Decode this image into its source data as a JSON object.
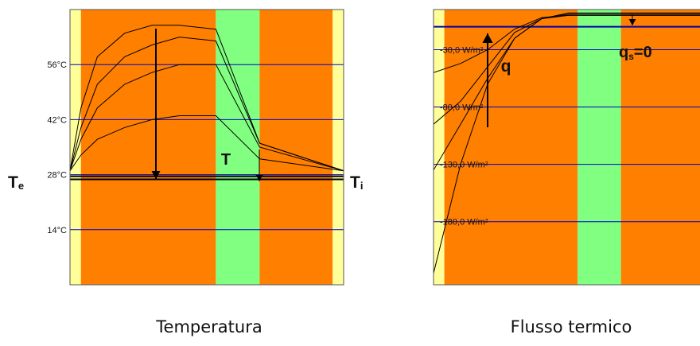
{
  "chart_data": [
    {
      "type": "line",
      "title": "",
      "caption": "Temperatura",
      "xlabel": "",
      "ylabel": "",
      "ylim": [
        0,
        70
      ],
      "y_ticks": [
        {
          "value": 56,
          "label": "56°C"
        },
        {
          "value": 42,
          "label": "42°C"
        },
        {
          "value": 28,
          "label": "28°C"
        },
        {
          "value": 14,
          "label": "14°C"
        }
      ],
      "grid": true,
      "layers": [
        {
          "name": "",
          "color": "#ffff99",
          "from": 0.0,
          "to": 0.04
        },
        {
          "name": "",
          "color": "#ff7f00",
          "from": 0.04,
          "to": 0.533
        },
        {
          "name": "",
          "color": "#80ff80",
          "from": 0.533,
          "to": 0.693
        },
        {
          "name": "",
          "color": "#ff7f00",
          "from": 0.693,
          "to": 0.96
        },
        {
          "name": "",
          "color": "#ffff99",
          "from": 0.96,
          "to": 1.0
        }
      ],
      "x": [
        0,
        0.04,
        0.1,
        0.2,
        0.3,
        0.4,
        0.533,
        0.693,
        1.0
      ],
      "series": [
        {
          "name": "",
          "values": [
            29,
            45,
            58,
            64,
            66,
            66,
            65,
            36,
            29
          ]
        },
        {
          "name": "",
          "values": [
            29,
            40,
            51,
            58,
            61,
            63,
            62,
            36,
            29
          ]
        },
        {
          "name": "",
          "values": [
            29,
            37,
            45,
            51,
            54,
            56,
            56,
            35,
            29
          ]
        },
        {
          "name": "",
          "values": [
            29,
            33,
            37,
            40,
            42,
            43,
            43,
            32,
            29
          ]
        }
      ],
      "reference_lines": [
        {
          "value": 27.6
        },
        {
          "value": 26.8
        }
      ],
      "annotations": [
        "T",
        "Te",
        "Ti"
      ]
    },
    {
      "type": "line",
      "title": "",
      "caption": "Flusso termico",
      "xlabel": "",
      "ylabel": "",
      "ylim": [
        -235,
        5
      ],
      "y_ticks": [
        {
          "value": -30,
          "label": "-30,0 W/m²"
        },
        {
          "value": -80,
          "label": "-80,0 W/m²"
        },
        {
          "value": -130,
          "label": "-130,0 W/m²"
        },
        {
          "value": -180,
          "label": "-180,0 W/m²"
        }
      ],
      "grid": true,
      "layers": [
        {
          "name": "",
          "color": "#ffff99",
          "from": 0.0,
          "to": 0.04
        },
        {
          "name": "",
          "color": "#ff7f00",
          "from": 0.04,
          "to": 0.533
        },
        {
          "name": "",
          "color": "#80ff80",
          "from": 0.533,
          "to": 0.693
        },
        {
          "name": "",
          "color": "#ff7f00",
          "from": 0.693,
          "to": 1.0
        }
      ],
      "x": [
        0,
        0.1,
        0.2,
        0.3,
        0.4,
        0.5,
        0.533,
        0.693,
        1.0
      ],
      "series": [
        {
          "name": "",
          "values": [
            -225,
            -130,
            -60,
            -20,
            -3,
            2,
            2,
            2,
            2
          ]
        },
        {
          "name": "",
          "values": [
            -135,
            -95,
            -55,
            -20,
            -3,
            1,
            1,
            1,
            1
          ]
        },
        {
          "name": "",
          "values": [
            -95,
            -75,
            -45,
            -15,
            -3,
            0,
            0,
            0,
            0
          ]
        },
        {
          "name": "",
          "values": [
            -50,
            -42,
            -30,
            -12,
            -2,
            0,
            0,
            0,
            0
          ]
        }
      ],
      "reference_lines": [
        {
          "value": -10
        }
      ],
      "annotations": [
        "q",
        "qs=0"
      ]
    }
  ]
}
